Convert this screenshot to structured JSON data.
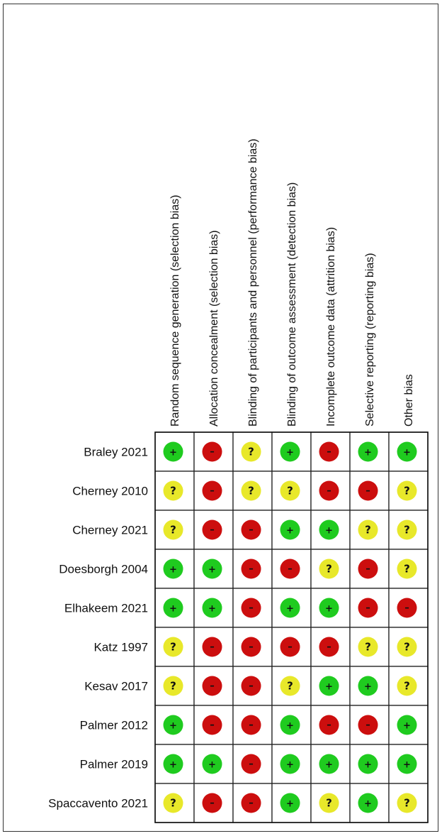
{
  "chart_data": {
    "type": "table",
    "domains": [
      "Random sequence generation (selection bias)",
      "Allocation concealment (selection bias)",
      "Blinding of participants and personnel (performance bias)",
      "Blinding of outcome assessment (detection bias)",
      "Incomplete outcome data (attrition bias)",
      "Selective reporting (reporting bias)",
      "Other bias"
    ],
    "studies": [
      {
        "name": "Braley 2021",
        "ratings": [
          "+",
          "-",
          "?",
          "+",
          "-",
          "+",
          "+"
        ]
      },
      {
        "name": "Cherney 2010",
        "ratings": [
          "?",
          "-",
          "?",
          "?",
          "-",
          "-",
          "?"
        ]
      },
      {
        "name": "Cherney 2021",
        "ratings": [
          "?",
          "-",
          "-",
          "+",
          "+",
          "?",
          "?"
        ]
      },
      {
        "name": "Doesborgh 2004",
        "ratings": [
          "+",
          "+",
          "-",
          "-",
          "?",
          "-",
          "?"
        ]
      },
      {
        "name": "Elhakeem 2021",
        "ratings": [
          "+",
          "+",
          "-",
          "+",
          "+",
          "-",
          "-"
        ]
      },
      {
        "name": "Katz 1997",
        "ratings": [
          "?",
          "-",
          "-",
          "-",
          "-",
          "?",
          "?"
        ]
      },
      {
        "name": "Kesav 2017",
        "ratings": [
          "?",
          "-",
          "-",
          "?",
          "+",
          "+",
          "?"
        ]
      },
      {
        "name": "Palmer 2012",
        "ratings": [
          "+",
          "-",
          "-",
          "+",
          "-",
          "-",
          "+"
        ]
      },
      {
        "name": "Palmer 2019",
        "ratings": [
          "+",
          "+",
          "-",
          "+",
          "+",
          "+",
          "+"
        ]
      },
      {
        "name": "Spaccavento 2021",
        "ratings": [
          "?",
          "-",
          "-",
          "+",
          "?",
          "+",
          "?"
        ]
      }
    ],
    "symbols": {
      "low_risk": "+",
      "unclear_risk": "?",
      "high_risk": "-"
    },
    "colors": {
      "low_risk": "#1fcb1f",
      "unclear_risk": "#e8e82a",
      "high_risk": "#cc0e0e"
    }
  }
}
